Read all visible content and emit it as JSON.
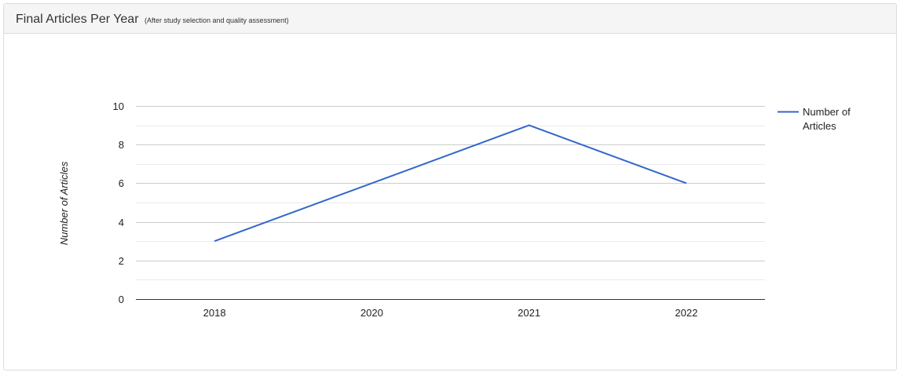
{
  "panel": {
    "title": "Final Articles Per Year",
    "subtitle": "(After study selection and quality assessment)"
  },
  "chart_data": {
    "type": "line",
    "categories": [
      "2018",
      "2020",
      "2021",
      "2022"
    ],
    "series": [
      {
        "name": "Number of Articles",
        "values": [
          3,
          6,
          9,
          6
        ],
        "color": "#3366cc"
      }
    ],
    "xlabel": "",
    "ylabel": "Number of Articles",
    "ylim": [
      0,
      10
    ],
    "yticks": [
      0,
      2,
      4,
      6,
      8,
      10
    ],
    "grid": true,
    "legend": "right",
    "legend_lines": [
      "Number of",
      "Articles"
    ]
  }
}
